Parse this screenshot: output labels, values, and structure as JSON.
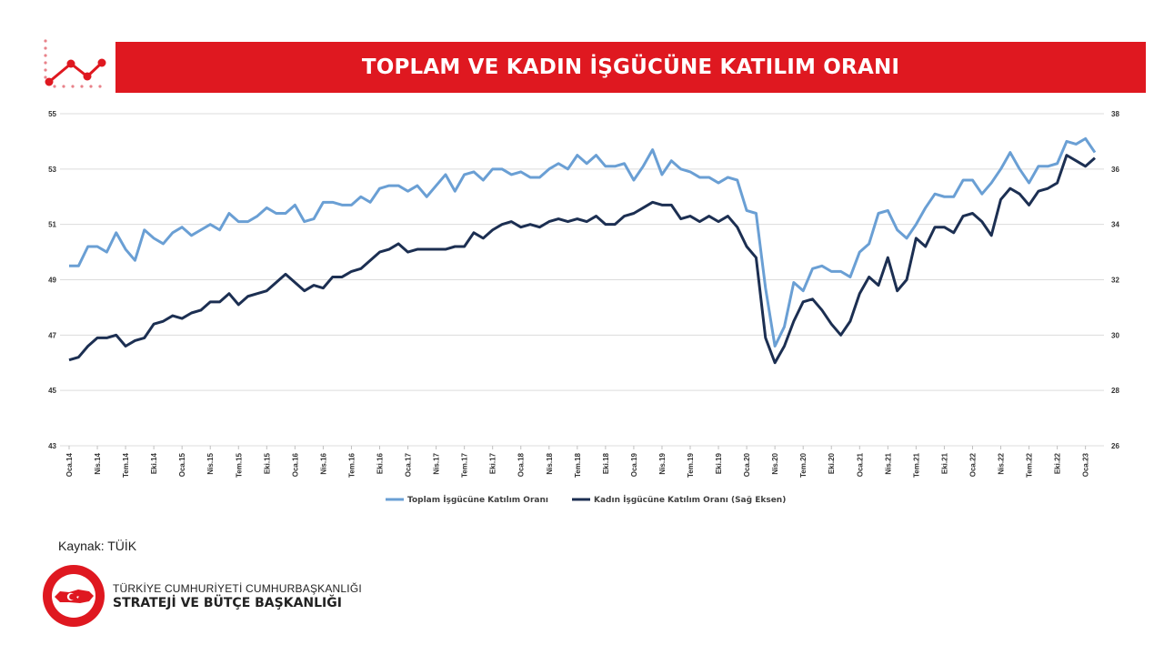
{
  "header": {
    "title": "TOPLAM VE KADIN İŞGÜCÜNE KATILIM ORANI"
  },
  "colors": {
    "accent": "#df1820",
    "series_total": "#6a9fd4",
    "series_women": "#1c2f52"
  },
  "footer": {
    "source": "Kaynak: TÜİK",
    "org_line1": "TÜRKİYE CUMHURİYETİ CUMHURBAŞKANLIĞI",
    "org_line2": "STRATEJİ VE BÜTÇE BAŞKANLIĞI"
  },
  "chart_data": {
    "type": "line",
    "title": "TOPLAM VE KADIN İŞGÜCÜNE KATILIM ORANI",
    "xlabel": "",
    "ylabel": "",
    "y2label": "",
    "ylim": [
      43,
      55
    ],
    "y2lim": [
      26,
      38
    ],
    "yticks": [
      43,
      45,
      47,
      49,
      51,
      53,
      55
    ],
    "y2ticks": [
      26,
      28,
      30,
      32,
      34,
      36,
      38
    ],
    "x_tick_labels": [
      "Oca.14",
      "Nis.14",
      "Tem.14",
      "Eki.14",
      "Oca.15",
      "Nis.15",
      "Tem.15",
      "Eki.15",
      "Oca.16",
      "Nis.16",
      "Tem.16",
      "Eki.16",
      "Oca.17",
      "Nis.17",
      "Tem.17",
      "Eki.17",
      "Oca.18",
      "Nis.18",
      "Tem.18",
      "Eki.18",
      "Oca.19",
      "Nis.19",
      "Tem.19",
      "Eki.19",
      "Oca.20",
      "Nis.20",
      "Tem.20",
      "Eki.20",
      "Oca.21",
      "Nis.21",
      "Tem.21",
      "Eki.21",
      "Oca.22",
      "Nis.22",
      "Tem.22",
      "Eki.22",
      "Oca.23"
    ],
    "grid": true,
    "legend_position": "bottom",
    "series": [
      {
        "name": "Toplam İşgücüne Katılım Oranı",
        "axis": "left",
        "values": [
          49.5,
          49.5,
          50.2,
          50.2,
          50.0,
          50.7,
          50.1,
          49.7,
          50.8,
          50.5,
          50.3,
          50.7,
          50.9,
          50.6,
          50.8,
          51.0,
          50.8,
          51.4,
          51.1,
          51.1,
          51.3,
          51.6,
          51.4,
          51.4,
          51.7,
          51.1,
          51.2,
          51.8,
          51.8,
          51.7,
          51.7,
          52.0,
          51.8,
          52.3,
          52.4,
          52.4,
          52.2,
          52.4,
          52.0,
          52.4,
          52.8,
          52.2,
          52.8,
          52.9,
          52.6,
          53.0,
          53.0,
          52.8,
          52.9,
          52.7,
          52.7,
          53.0,
          53.2,
          53.0,
          53.5,
          53.2,
          53.5,
          53.1,
          53.1,
          53.2,
          52.6,
          53.1,
          53.7,
          52.8,
          53.3,
          53.0,
          52.9,
          52.7,
          52.7,
          52.5,
          52.7,
          52.6,
          51.5,
          51.4,
          48.7,
          46.6,
          47.3,
          48.9,
          48.6,
          49.4,
          49.5,
          49.3,
          49.3,
          49.1,
          50.0,
          50.3,
          51.4,
          51.5,
          50.8,
          50.5,
          51.0,
          51.6,
          52.1,
          52.0,
          52.0,
          52.6,
          52.6,
          52.1,
          52.5,
          53.0,
          53.6,
          53.0,
          52.5,
          53.1,
          53.1,
          53.2,
          54.0,
          53.9,
          54.1,
          53.6
        ]
      },
      {
        "name": "Kadın İşgücüne Katılım Oranı (Sağ Eksen)",
        "axis": "right",
        "values": [
          29.1,
          29.2,
          29.6,
          29.9,
          29.9,
          30.0,
          29.6,
          29.8,
          29.9,
          30.4,
          30.5,
          30.7,
          30.6,
          30.8,
          30.9,
          31.2,
          31.2,
          31.5,
          31.1,
          31.4,
          31.5,
          31.6,
          31.9,
          32.2,
          31.9,
          31.6,
          31.8,
          31.7,
          32.1,
          32.1,
          32.3,
          32.4,
          32.7,
          33.0,
          33.1,
          33.3,
          33.0,
          33.1,
          33.1,
          33.1,
          33.1,
          33.2,
          33.2,
          33.7,
          33.5,
          33.8,
          34.0,
          34.1,
          33.9,
          34.0,
          33.9,
          34.1,
          34.2,
          34.1,
          34.2,
          34.1,
          34.3,
          34.0,
          34.0,
          34.3,
          34.4,
          34.6,
          34.8,
          34.7,
          34.7,
          34.2,
          34.3,
          34.1,
          34.3,
          34.1,
          34.3,
          33.9,
          33.2,
          32.8,
          29.9,
          29.0,
          29.6,
          30.5,
          31.2,
          31.3,
          30.9,
          30.4,
          30.0,
          30.5,
          31.5,
          32.1,
          31.8,
          32.8,
          31.6,
          32.0,
          33.5,
          33.2,
          33.9,
          33.9,
          33.7,
          34.3,
          34.4,
          34.1,
          33.6,
          34.9,
          35.3,
          35.1,
          34.7,
          35.2,
          35.3,
          35.5,
          36.5,
          36.3,
          36.1,
          36.4
        ]
      }
    ]
  }
}
